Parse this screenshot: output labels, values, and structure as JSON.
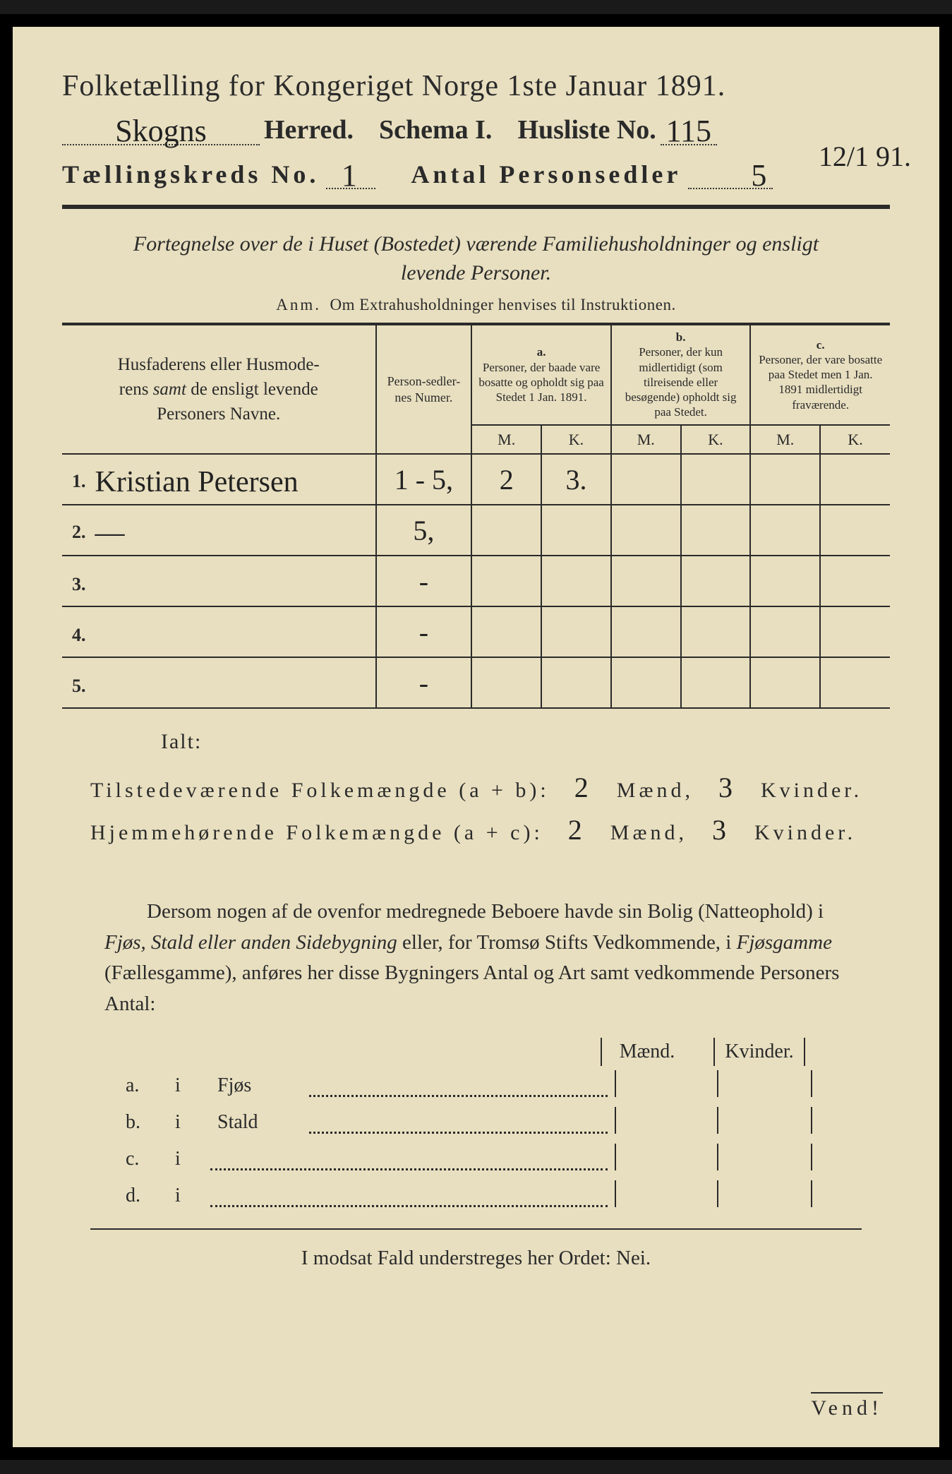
{
  "header": {
    "title": "Folketælling for Kongeriget Norge 1ste Januar 1891.",
    "herred_value": "Skogns",
    "herred_label": "Herred.",
    "schema_label": "Schema I.",
    "husliste_label": "Husliste No.",
    "husliste_value": "115",
    "margin_date": "12/1 91.",
    "kreds_label": "Tællingskreds No.",
    "kreds_value": "1",
    "antal_label": "Antal Personsedler",
    "antal_value": "5"
  },
  "subtitle": {
    "line1_italic": "Fortegnelse over de i Huset (Bostedet) værende Familiehusholdninger og ensligt",
    "line2_italic": "levende Personer.",
    "anm_prefix": "Anm.",
    "anm_text": "Om Extrahusholdninger henvises til Instruktionen."
  },
  "table": {
    "col1": "Husfaderens eller Husmoderens samt de ensligt levende Personers Navne.",
    "col2": "Person-sedler-nes Numer.",
    "col_a_label": "a.",
    "col_a": "Personer, der baade vare bosatte og opholdt sig paa Stedet 1 Jan. 1891.",
    "col_b_label": "b.",
    "col_b": "Personer, der kun midlertidigt (som tilreisende eller besøgende) opholdt sig paa Stedet.",
    "col_c_label": "c.",
    "col_c": "Personer, der vare bosatte paa Stedet men 1 Jan. 1891 midlertidigt fraværende.",
    "m": "M.",
    "k": "K.",
    "rows": [
      {
        "n": "1.",
        "name": "Kristian Petersen",
        "num": "1 - 5,",
        "am": "2",
        "ak": "3.",
        "bm": "",
        "bk": "",
        "cm": "",
        "ck": ""
      },
      {
        "n": "2.",
        "name": "—",
        "num": "5,",
        "am": "",
        "ak": "",
        "bm": "",
        "bk": "",
        "cm": "",
        "ck": ""
      },
      {
        "n": "3.",
        "name": "",
        "num": "-",
        "am": "",
        "ak": "",
        "bm": "",
        "bk": "",
        "cm": "",
        "ck": ""
      },
      {
        "n": "4.",
        "name": "",
        "num": "-",
        "am": "",
        "ak": "",
        "bm": "",
        "bk": "",
        "cm": "",
        "ck": ""
      },
      {
        "n": "5.",
        "name": "",
        "num": "-",
        "am": "",
        "ak": "",
        "bm": "",
        "bk": "",
        "cm": "",
        "ck": ""
      }
    ]
  },
  "totals": {
    "ialt": "Ialt:",
    "line1_label": "Tilstedeværende Folkemængde (a + b):",
    "line1_m": "2",
    "maend": "Mænd,",
    "line1_k": "3",
    "kvinder": "Kvinder.",
    "line2_label": "Hjemmehørende Folkemængde (a + c):",
    "line2_m": "2",
    "line2_k": "3"
  },
  "para": {
    "text1": "Dersom nogen af de ovenfor medregnede Beboere havde sin Bolig (Natteophold) i ",
    "it1": "Fjøs, Stald eller anden Sidebygning",
    "text2": " eller, for Tromsø Stifts Vedkommende, i ",
    "it2": "Fjøsgamme",
    "text3": " (Fællesgamme), anføres her disse Bygningers Antal og Art samt vedkommende Personers Antal:"
  },
  "mk": {
    "m": "Mænd.",
    "k": "Kvinder."
  },
  "list": {
    "a": {
      "lbl": "a.",
      "i": "i",
      "txt": "Fjøs"
    },
    "b": {
      "lbl": "b.",
      "i": "i",
      "txt": "Stald"
    },
    "c": {
      "lbl": "c.",
      "i": "i",
      "txt": ""
    },
    "d": {
      "lbl": "d.",
      "i": "i",
      "txt": ""
    }
  },
  "footer": {
    "line": "I modsat Fald understreges her Ordet: Nei.",
    "vend": "Vend!"
  },
  "colors": {
    "paper": "#e8dfc0",
    "ink": "#2a2a2a",
    "border": "#000000",
    "handwriting": "#222222"
  }
}
